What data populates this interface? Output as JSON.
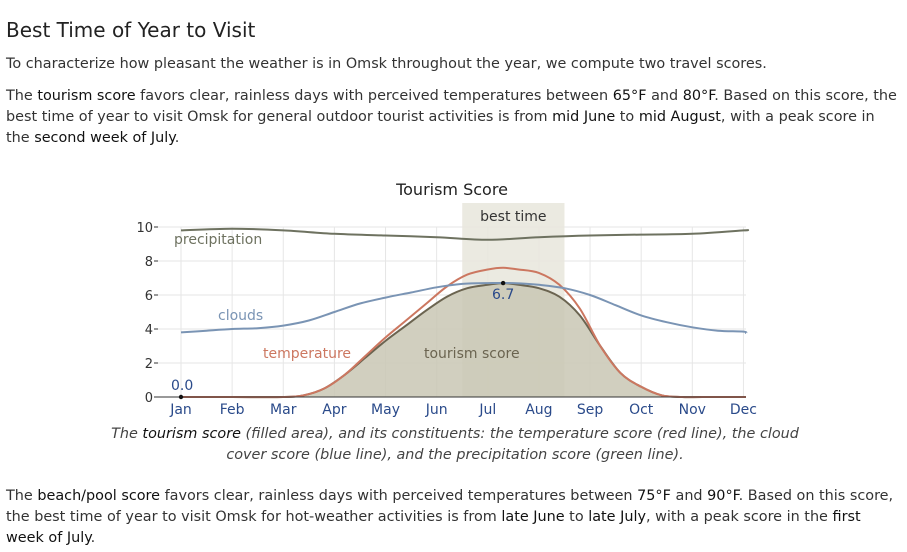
{
  "page": {
    "title": "Best Time of Year to Visit",
    "intro": "To characterize how pleasant the weather is in Omsk throughout the year, we compute two travel scores.",
    "tourism_para": {
      "t1": "The ",
      "h1": "tourism score",
      "t2": " favors clear, rainless days with perceived temperatures between ",
      "h2": "65°F",
      "t3": " and ",
      "h3": "80°F",
      "t4": ". Based on this score, the best time of year to visit Omsk for general outdoor tourist activities is from ",
      "h4": "mid June",
      "t5": " to ",
      "h5": "mid August",
      "t6": ", with a peak score in the ",
      "h6": "second week of July",
      "t7": "."
    },
    "caption": {
      "t1": "The ",
      "h1": "tourism score",
      "t2": " (filled area), and its constituents: the temperature score (red line), the cloud cover score (blue line), and the precipitation score (green line)."
    },
    "beach_para": {
      "t1": "The ",
      "h1": "beach/pool score",
      "t2": " favors clear, rainless days with perceived temperatures between ",
      "h2": "75°F",
      "t3": " and ",
      "h3": "90°F",
      "t4": ". Based on this score, the best time of year to visit Omsk for hot-weather activities is from ",
      "h4": "late June",
      "t5": " to ",
      "h5": "late July",
      "t6": ", with a peak score in the ",
      "h6": "first week of July",
      "t7": "."
    }
  },
  "chart_data": {
    "type": "area",
    "title": "Tourism Score",
    "best_time_label": "best time",
    "best_time_range": [
      5.5,
      7.5
    ],
    "ylim": [
      0,
      10
    ],
    "xlim": [
      0,
      11.5
    ],
    "yticks": [
      0,
      2,
      4,
      6,
      8,
      10
    ],
    "categories": [
      "Jan",
      "Feb",
      "Mar",
      "Apr",
      "May",
      "Jun",
      "Jul",
      "Aug",
      "Sep",
      "Oct",
      "Nov",
      "Dec"
    ],
    "grid": true,
    "colors": {
      "tourism_fill": "#c9c7b4",
      "tourism_line": "#6b6450",
      "temperature": "#cc7760",
      "clouds": "#7a94b4",
      "precipitation": "#6e7260",
      "best_band": "#e8e6dc",
      "axis": "#333333",
      "grid": "#e6e6e6"
    },
    "annotations": {
      "min_label": "0.0",
      "min_x": 0.0,
      "min_y": 0.0,
      "max_label": "6.7",
      "max_x": 6.3,
      "max_y": 6.7
    },
    "series": [
      {
        "name": "tourism score",
        "x": [
          0,
          1,
          2,
          2.4,
          2.8,
          3.2,
          3.6,
          4.0,
          4.4,
          4.8,
          5.2,
          5.6,
          6.0,
          6.3,
          6.6,
          7.0,
          7.4,
          7.8,
          8.2,
          8.6,
          9.0,
          9.4,
          9.8,
          10.2,
          11.5
        ],
        "values": [
          0,
          0,
          0,
          0.1,
          0.5,
          1.3,
          2.3,
          3.3,
          4.2,
          5.1,
          5.9,
          6.4,
          6.6,
          6.7,
          6.6,
          6.4,
          5.9,
          4.8,
          3.0,
          1.4,
          0.6,
          0.1,
          0,
          0,
          0
        ]
      },
      {
        "name": "temperature",
        "x": [
          0,
          1,
          2,
          2.4,
          2.8,
          3.2,
          3.6,
          4.0,
          4.4,
          4.8,
          5.2,
          5.6,
          6.0,
          6.3,
          6.6,
          7.0,
          7.4,
          7.8,
          8.2,
          8.6,
          9.0,
          9.4,
          9.8,
          10.2,
          11.5
        ],
        "values": [
          0,
          0,
          0,
          0.1,
          0.5,
          1.3,
          2.4,
          3.5,
          4.5,
          5.5,
          6.5,
          7.2,
          7.5,
          7.6,
          7.5,
          7.3,
          6.6,
          5.2,
          3.0,
          1.4,
          0.6,
          0.1,
          0,
          0,
          0
        ]
      },
      {
        "name": "clouds",
        "x": [
          0,
          0.5,
          1,
          1.5,
          2,
          2.5,
          3,
          3.5,
          4,
          4.5,
          5,
          5.5,
          6,
          6.5,
          7,
          7.5,
          8,
          8.5,
          9,
          9.5,
          10,
          10.5,
          11,
          11.5
        ],
        "values": [
          3.8,
          3.9,
          4.0,
          4.05,
          4.2,
          4.5,
          5.0,
          5.5,
          5.85,
          6.15,
          6.45,
          6.65,
          6.7,
          6.7,
          6.6,
          6.4,
          6.0,
          5.4,
          4.8,
          4.4,
          4.1,
          3.9,
          3.85,
          3.75
        ]
      },
      {
        "name": "precipitation",
        "x": [
          0,
          1,
          2,
          3,
          4,
          5,
          6,
          7,
          8,
          9,
          10,
          11,
          11.5
        ],
        "values": [
          9.8,
          9.9,
          9.8,
          9.6,
          9.5,
          9.4,
          9.25,
          9.4,
          9.5,
          9.55,
          9.6,
          9.8,
          9.8
        ]
      }
    ]
  }
}
